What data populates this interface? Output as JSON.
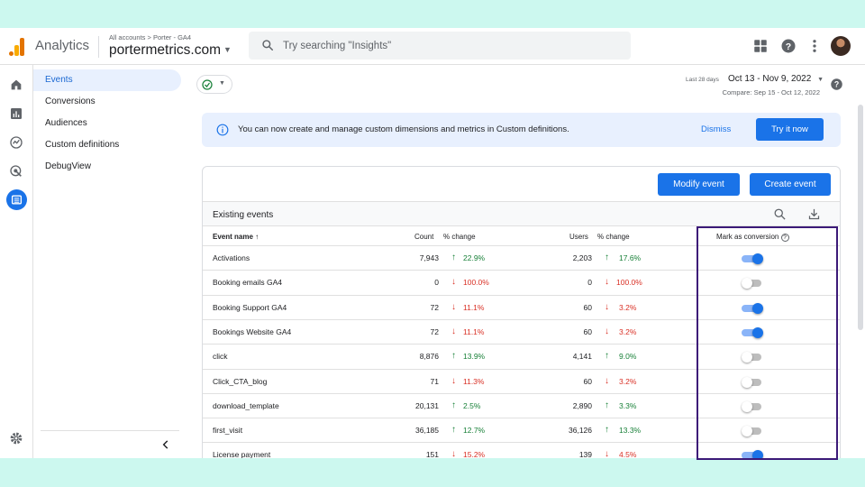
{
  "topbar": {
    "app_name": "Analytics",
    "breadcrumb": "All accounts > Porter - GA4",
    "property": "portermetrics.com",
    "search_placeholder": "Try searching \"Insights\""
  },
  "sidebar": {
    "items": [
      {
        "label": "Events",
        "active": true
      },
      {
        "label": "Conversions"
      },
      {
        "label": "Audiences"
      },
      {
        "label": "Custom definitions"
      },
      {
        "label": "DebugView"
      }
    ]
  },
  "header": {
    "date_small": "Last 28 days",
    "date_range": "Oct 13 - Nov 9, 2022",
    "compare": "Compare: Sep 15 - Oct 12, 2022"
  },
  "banner": {
    "text": "You can now create and manage custom dimensions and metrics in Custom definitions.",
    "dismiss": "Dismiss",
    "try": "Try it now"
  },
  "card": {
    "modify_label": "Modify event",
    "create_label": "Create event",
    "title": "Existing events"
  },
  "columns": {
    "event_name": "Event name",
    "count": "Count",
    "pct_change": "% change",
    "users": "Users",
    "users_change": "% change",
    "mark": "Mark as conversion"
  },
  "rows": [
    {
      "name": "Activations",
      "count": "7,943",
      "count_change": "22.9%",
      "count_dir": "up",
      "users": "2,203",
      "users_change": "17.6%",
      "users_dir": "up",
      "conversion": true
    },
    {
      "name": "Booking emails GA4",
      "count": "0",
      "count_change": "100.0%",
      "count_dir": "down",
      "users": "0",
      "users_change": "100.0%",
      "users_dir": "down",
      "conversion": false
    },
    {
      "name": "Booking Support GA4",
      "count": "72",
      "count_change": "11.1%",
      "count_dir": "down",
      "users": "60",
      "users_change": "3.2%",
      "users_dir": "down",
      "conversion": true
    },
    {
      "name": "Bookings Website GA4",
      "count": "72",
      "count_change": "11.1%",
      "count_dir": "down",
      "users": "60",
      "users_change": "3.2%",
      "users_dir": "down",
      "conversion": true
    },
    {
      "name": "click",
      "count": "8,876",
      "count_change": "13.9%",
      "count_dir": "up",
      "users": "4,141",
      "users_change": "9.0%",
      "users_dir": "up",
      "conversion": false
    },
    {
      "name": "Click_CTA_blog",
      "count": "71",
      "count_change": "11.3%",
      "count_dir": "down",
      "users": "60",
      "users_change": "3.2%",
      "users_dir": "down",
      "conversion": false
    },
    {
      "name": "download_template",
      "count": "20,131",
      "count_change": "2.5%",
      "count_dir": "up",
      "users": "2,890",
      "users_change": "3.3%",
      "users_dir": "up",
      "conversion": false
    },
    {
      "name": "first_visit",
      "count": "36,185",
      "count_change": "12.7%",
      "count_dir": "up",
      "users": "36,126",
      "users_change": "13.3%",
      "users_dir": "up",
      "conversion": false
    },
    {
      "name": "License payment",
      "count": "151",
      "count_change": "15.2%",
      "count_dir": "down",
      "users": "139",
      "users_change": "4.5%",
      "users_dir": "down",
      "conversion": true
    }
  ],
  "colors": {
    "accent": "#1a73e8",
    "up": "#188038",
    "down": "#d93025",
    "highlight": "#3c1a78",
    "page_bg": "#ccf8ef"
  }
}
